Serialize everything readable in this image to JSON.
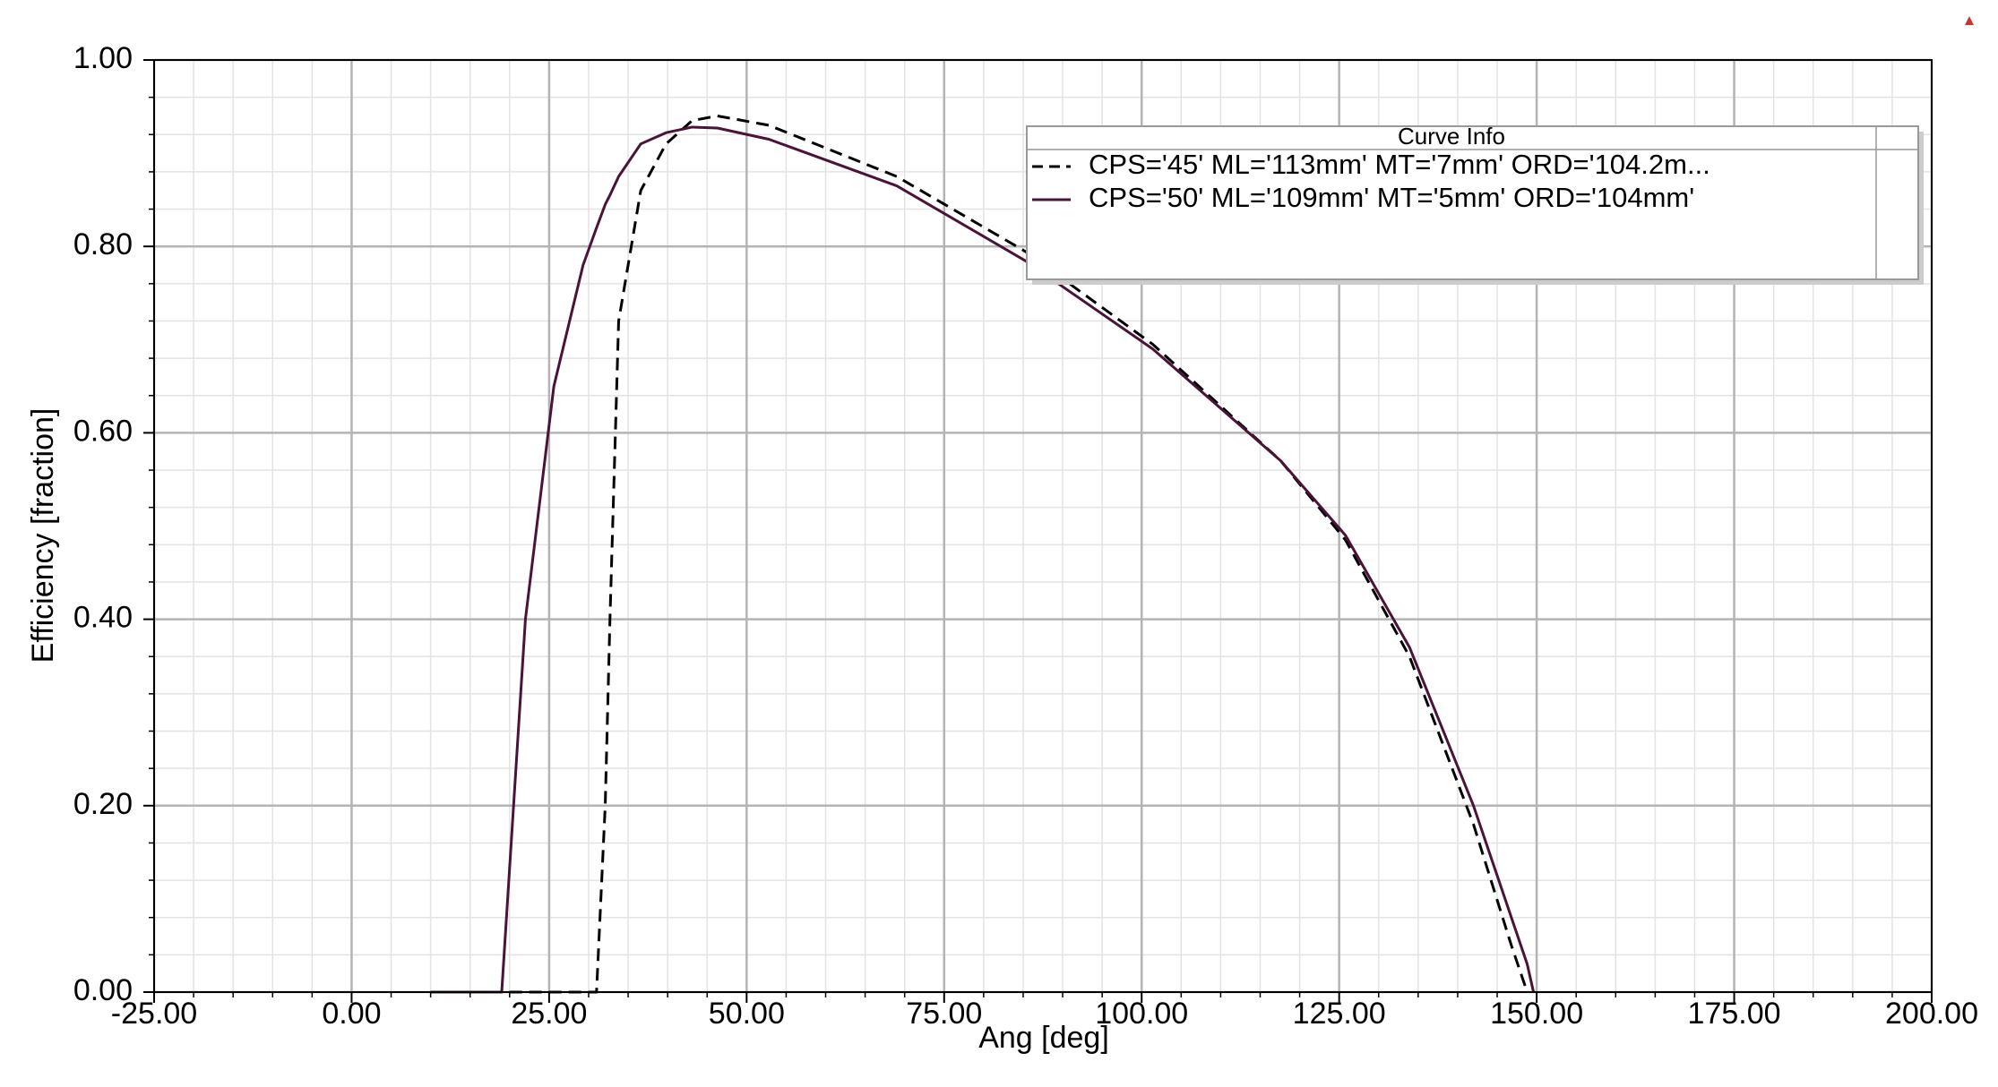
{
  "chart_data": {
    "type": "line",
    "x_label": "Ang [deg]",
    "y_label": "Efficiency [fraction]",
    "legend_title": "Curve Info",
    "legend_position": "upper right",
    "grid": true,
    "minor_divisions": 5,
    "x": [
      10,
      19,
      22,
      25.6,
      29.3,
      31,
      32.1,
      32.7,
      33.8,
      36.6,
      39.8,
      43.1,
      46.3,
      52.8,
      69,
      85.2,
      101.4,
      117.6,
      125.8,
      133.9,
      142,
      146.8,
      148.8,
      149.6
    ],
    "series": [
      {
        "name": "CPS='45' ML='113mm' MT='7mm' ORD='104.2m...",
        "color": "#000000",
        "dashed": true,
        "values": [
          0,
          0,
          0,
          0,
          0,
          0,
          0.2,
          0.4,
          0.72,
          0.86,
          0.91,
          0.935,
          0.94,
          0.93,
          0.875,
          0.795,
          0.695,
          0.57,
          0.485,
          0.36,
          0.18,
          0.05,
          0,
          null
        ]
      },
      {
        "name": "CPS='50' ML='109mm' MT='5mm' ORD='104mm'",
        "color": "#4a1436",
        "dashed": false,
        "values": [
          0,
          0,
          0.4,
          0.65,
          0.78,
          0.82,
          0.845,
          0.855,
          0.875,
          0.91,
          0.922,
          0.928,
          0.927,
          0.915,
          0.865,
          0.785,
          0.69,
          0.57,
          0.49,
          0.37,
          0.2,
          0.08,
          0.03,
          0
        ]
      }
    ],
    "xlim": [
      -25,
      200
    ],
    "xticks": [
      {
        "value": -25,
        "label": "-25.00"
      },
      {
        "value": 0,
        "label": "0.00"
      },
      {
        "value": 25,
        "label": "25.00"
      },
      {
        "value": 50,
        "label": "50.00"
      },
      {
        "value": 75,
        "label": "75.00"
      },
      {
        "value": 100,
        "label": "100.00"
      },
      {
        "value": 125,
        "label": "125.00"
      },
      {
        "value": 150,
        "label": "150.00"
      },
      {
        "value": 175,
        "label": "175.00"
      },
      {
        "value": 200,
        "label": "200.00"
      }
    ],
    "ylim": [
      0,
      1
    ],
    "yticks": [
      {
        "value": 0,
        "label": "0.00"
      },
      {
        "value": 0.2,
        "label": "0.20"
      },
      {
        "value": 0.4,
        "label": "0.40"
      },
      {
        "value": 0.6,
        "label": "0.60"
      },
      {
        "value": 0.8,
        "label": "0.80"
      },
      {
        "value": 1,
        "label": "1.00"
      }
    ]
  }
}
